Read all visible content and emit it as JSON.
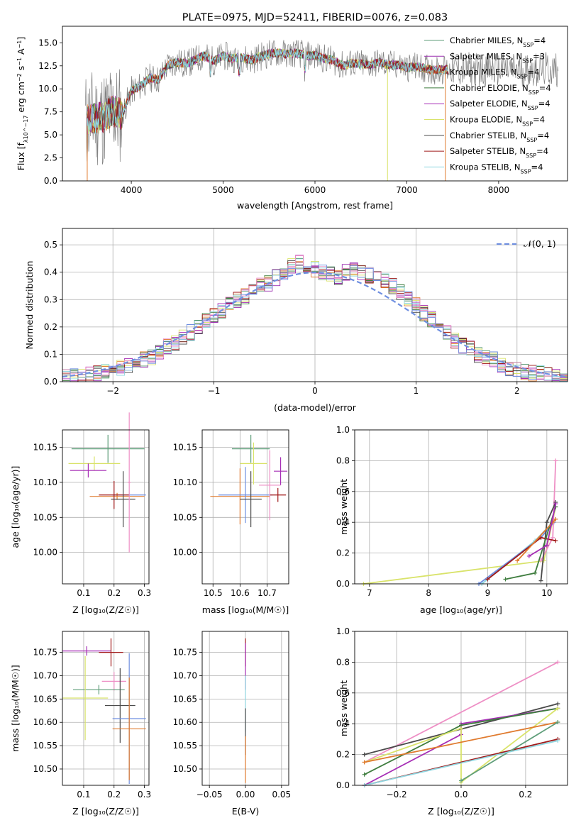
{
  "chart_data": [
    {
      "type": "line",
      "title": "PLATE=0975, MJD=52411, FIBERID=0076, z=0.083",
      "xlabel": "wavelength [Angstrom, rest frame]",
      "ylabel": "Flux [f_λ10^−17 erg cm^−2 s^−1 A^−1]",
      "xlim": [
        3250,
        8750
      ],
      "ylim": [
        0,
        16.8
      ],
      "xticks": [
        "4000",
        "5000",
        "6000",
        "7000",
        "8000"
      ],
      "yticks": [
        "0.0",
        "2.5",
        "5.0",
        "7.5",
        "10.0",
        "12.5",
        "15.0"
      ],
      "grid": false,
      "legend_position": "right",
      "legend": [
        {
          "name": "Chabrier MILES",
          "nssp": "4",
          "color": "#5f9e7a"
        },
        {
          "name": "Salpeter MILES",
          "nssp": "3",
          "color": "#9c2fb0"
        },
        {
          "name": "Kroupa MILES",
          "nssp": "4",
          "color": "#e07b2f"
        },
        {
          "name": "Chabrier ELODIE",
          "nssp": "4",
          "color": "#3f7d3f"
        },
        {
          "name": "Salpeter ELODIE",
          "nssp": "4",
          "color": "#a62db5"
        },
        {
          "name": "Kroupa ELODIE",
          "nssp": "4",
          "color": "#d9e36a"
        },
        {
          "name": "Chabrier STELIB",
          "nssp": "4",
          "color": "#4a4a4a"
        },
        {
          "name": "Salpeter STELIB",
          "nssp": "4",
          "color": "#a11a1a"
        },
        {
          "name": "Kroupa STELIB",
          "nssp": "4",
          "color": "#8fd6e0"
        }
      ],
      "spectrum_profile": {
        "x": [
          3500,
          3600,
          3700,
          3800,
          3900,
          4000,
          4100,
          4200,
          4300,
          4400,
          4500,
          4600,
          4700,
          4800,
          4900,
          5000,
          5100,
          5200,
          5300,
          5400,
          5500,
          5600,
          5700,
          5800,
          5900,
          6000,
          6100,
          6200,
          6300,
          6400,
          6500,
          6600,
          6700,
          6800,
          6900,
          7000,
          7100,
          7200,
          7300,
          7400
        ],
        "y": [
          6.5,
          6.8,
          7.0,
          7.6,
          7.2,
          9.8,
          10.3,
          11.2,
          11.0,
          12.6,
          12.9,
          12.7,
          13.2,
          13.6,
          13.0,
          13.6,
          13.3,
          13.4,
          13.1,
          13.5,
          13.8,
          13.9,
          13.8,
          13.9,
          13.6,
          13.6,
          13.3,
          13.1,
          12.5,
          12.8,
          12.7,
          12.6,
          12.9,
          12.6,
          12.6,
          12.3,
          12.4,
          12.2,
          12.0,
          12.1
        ]
      }
    },
    {
      "type": "histogram",
      "xlabel": "(data-model)/error",
      "ylabel": "Normed distribution",
      "xlim": [
        -2.5,
        2.5
      ],
      "ylim": [
        0,
        0.56
      ],
      "xticks": [
        "−2",
        "−1",
        "0",
        "1",
        "2"
      ],
      "yticks": [
        "0.0",
        "0.1",
        "0.2",
        "0.3",
        "0.4",
        "0.5"
      ],
      "grid": true,
      "legend_label": "𝒩(0, 1)",
      "legend_position": "top-right",
      "bin_width": 0.1,
      "bin_start": -2.5,
      "envelope": [
        0.02,
        0.02,
        0.022,
        0.025,
        0.03,
        0.035,
        0.04,
        0.05,
        0.06,
        0.07,
        0.08,
        0.09,
        0.11,
        0.13,
        0.14,
        0.16,
        0.18,
        0.2,
        0.22,
        0.24,
        0.26,
        0.28,
        0.3,
        0.31,
        0.33,
        0.35,
        0.36,
        0.38,
        0.4,
        0.42,
        0.44,
        0.42,
        0.41,
        0.4,
        0.39,
        0.38,
        0.4,
        0.41,
        0.4,
        0.39,
        0.38,
        0.37,
        0.35,
        0.33,
        0.3,
        0.28,
        0.25,
        0.23,
        0.2,
        0.18,
        0.15,
        0.13,
        0.12,
        0.1,
        0.09,
        0.08,
        0.06,
        0.05,
        0.04,
        0.035,
        0.03,
        0.03,
        0.025,
        0.02,
        0.02
      ]
    },
    {
      "type": "scatter",
      "xlabel": "Z [log10(Z/Z☉)]",
      "ylabel": "age  [log10(age/yr)]",
      "xlim": [
        0.03,
        0.315
      ],
      "ylim": [
        9.955,
        10.175
      ],
      "xticks": [
        "0.1",
        "0.2",
        "0.3"
      ],
      "yticks": [
        "10.00",
        "10.05",
        "10.10",
        "10.15"
      ],
      "grid": true,
      "points": [
        {
          "x": 0.18,
          "y": 10.148,
          "xerr": 0.12,
          "yerr": 0.02,
          "color": "#5f9e7a"
        },
        {
          "x": 0.135,
          "y": 10.127,
          "xerr": 0.085,
          "yerr": 0.01,
          "color": "#d9e36a"
        },
        {
          "x": 0.115,
          "y": 10.117,
          "xerr": 0.06,
          "yerr": 0.01,
          "color": "#a62db5"
        },
        {
          "x": 0.25,
          "y": 10.082,
          "xerr": 0.055,
          "yerr": 0.002,
          "color": "#6f8fe0"
        },
        {
          "x": 0.21,
          "y": 10.08,
          "xerr": 0.09,
          "yerr": 0.005,
          "color": "#e07b2f"
        },
        {
          "x": 0.2,
          "y": 10.082,
          "xerr": 0.05,
          "yerr": 0.02,
          "color": "#a11a1a"
        },
        {
          "x": 0.23,
          "y": 10.076,
          "xerr": 0.04,
          "yerr": 0.04,
          "color": "#4a4a4a"
        },
        {
          "x": 0.25,
          "y": 10.1,
          "xerr": 0.005,
          "yerr": 0.1,
          "color": "#ee8fc5"
        }
      ]
    },
    {
      "type": "scatter",
      "xlabel": "mass [log10(M/M☉)]",
      "ylabel": "",
      "xlim": [
        10.46,
        10.78
      ],
      "ylim": [
        9.955,
        10.175
      ],
      "xticks": [
        "10.5",
        "10.6",
        "10.7"
      ],
      "yticks": [
        "10.00",
        "10.05",
        "10.10",
        "10.15"
      ],
      "grid": true,
      "points": [
        {
          "x": 10.64,
          "y": 10.148,
          "xerr": 0.07,
          "yerr": 0.02,
          "color": "#5f9e7a"
        },
        {
          "x": 10.65,
          "y": 10.127,
          "xerr": 0.05,
          "yerr": 0.03,
          "color": "#d9e36a"
        },
        {
          "x": 10.75,
          "y": 10.116,
          "xerr": 0.025,
          "yerr": 0.02,
          "color": "#a62db5"
        },
        {
          "x": 10.6,
          "y": 10.08,
          "xerr": 0.11,
          "yerr": 0.04,
          "color": "#e07b2f"
        },
        {
          "x": 10.62,
          "y": 10.082,
          "xerr": 0.1,
          "yerr": 0.04,
          "color": "#6f8fe0"
        },
        {
          "x": 10.74,
          "y": 10.082,
          "xerr": 0.03,
          "yerr": 0.01,
          "color": "#a11a1a"
        },
        {
          "x": 10.64,
          "y": 10.076,
          "xerr": 0.04,
          "yerr": 0.04,
          "color": "#4a4a4a"
        },
        {
          "x": 10.71,
          "y": 10.096,
          "xerr": 0.04,
          "yerr": 0.05,
          "color": "#ee8fc5"
        }
      ]
    },
    {
      "type": "line",
      "xlabel": "age  [log10(age/yr)]",
      "ylabel": "mass weight",
      "xlim": [
        6.75,
        10.35
      ],
      "ylim": [
        0,
        1.0
      ],
      "xticks": [
        "7",
        "8",
        "9",
        "10"
      ],
      "yticks": [
        "0.0",
        "0.2",
        "0.4",
        "0.6",
        "0.8",
        "1.0"
      ],
      "grid": true,
      "series": [
        {
          "color": "#d9e36a",
          "x": [
            6.9,
            9.95,
            10.15
          ],
          "y": [
            0.0,
            0.15,
            0.5
          ]
        },
        {
          "color": "#8fd6e0",
          "x": [
            8.9,
            9.8,
            10.15
          ],
          "y": [
            0.0,
            0.28,
            0.42
          ]
        },
        {
          "color": "#6f8fe0",
          "x": [
            8.85,
            9.9,
            10.12
          ],
          "y": [
            0.0,
            0.3,
            0.4
          ]
        },
        {
          "color": "#ee8fc5",
          "x": [
            9.9,
            10.1,
            10.15
          ],
          "y": [
            0.15,
            0.3,
            0.8
          ]
        },
        {
          "color": "#4a4a4a",
          "x": [
            9.9,
            10.0,
            10.15
          ],
          "y": [
            0.02,
            0.4,
            0.53
          ]
        },
        {
          "color": "#a11a1a",
          "x": [
            9.0,
            9.9,
            10.15
          ],
          "y": [
            0.03,
            0.3,
            0.28
          ]
        },
        {
          "color": "#3f7d3f",
          "x": [
            9.3,
            9.8,
            10.15
          ],
          "y": [
            0.03,
            0.07,
            0.5
          ]
        },
        {
          "color": "#e07b2f",
          "x": [
            9.5,
            10.1,
            10.15
          ],
          "y": [
            0.15,
            0.4,
            0.42
          ]
        },
        {
          "color": "#a62db5",
          "x": [
            9.7,
            10.0,
            10.15
          ],
          "y": [
            0.18,
            0.25,
            0.52
          ]
        }
      ]
    },
    {
      "type": "scatter",
      "xlabel": "Z [log10(Z/Z☉)]",
      "ylabel": "mass [log10(M/M☉)]",
      "xlim": [
        0.03,
        0.315
      ],
      "ylim": [
        10.465,
        10.795
      ],
      "xticks": [
        "0.1",
        "0.2",
        "0.3"
      ],
      "yticks": [
        "10.50",
        "10.55",
        "10.60",
        "10.65",
        "10.70",
        "10.75"
      ],
      "grid": true,
      "points": [
        {
          "x": 0.11,
          "y": 10.753,
          "xerr": 0.08,
          "yerr": 0.01,
          "color": "#a62db5"
        },
        {
          "x": 0.19,
          "y": 10.75,
          "xerr": 0.04,
          "yerr": 0.03,
          "color": "#a11a1a"
        },
        {
          "x": 0.2,
          "y": 10.688,
          "xerr": 0.04,
          "yerr": 0.02,
          "color": "#ee8fc5"
        },
        {
          "x": 0.15,
          "y": 10.67,
          "xerr": 0.085,
          "yerr": 0.01,
          "color": "#5f9e7a"
        },
        {
          "x": 0.105,
          "y": 10.652,
          "xerr": 0.075,
          "yerr": 0.09,
          "color": "#d9e36a"
        },
        {
          "x": 0.22,
          "y": 10.636,
          "xerr": 0.05,
          "yerr": 0.08,
          "color": "#4a4a4a"
        },
        {
          "x": 0.25,
          "y": 10.608,
          "xerr": 0.055,
          "yerr": 0.14,
          "color": "#6f8fe0"
        },
        {
          "x": 0.25,
          "y": 10.586,
          "xerr": 0.055,
          "yerr": 0.11,
          "color": "#e07b2f"
        }
      ]
    },
    {
      "type": "scatter",
      "xlabel": "E(B-V)",
      "ylabel": "",
      "xlim": [
        -0.06,
        0.06
      ],
      "ylim": [
        10.465,
        10.795
      ],
      "xticks": [
        "−0.05",
        "0.00",
        "0.05"
      ],
      "yticks": [
        "10.50",
        "10.55",
        "10.60",
        "10.65",
        "10.70",
        "10.75"
      ],
      "grid": true,
      "points": [
        {
          "x": 0,
          "y": 10.75,
          "xerr": 0.0005,
          "yerr": 0.03,
          "color": "#a11a1a"
        },
        {
          "x": 0,
          "y": 10.72,
          "xerr": 0.0005,
          "yerr": 0.05,
          "color": "#a62db5"
        },
        {
          "x": 0,
          "y": 10.64,
          "xerr": 0.0005,
          "yerr": 0.06,
          "color": "#8fd6e0"
        },
        {
          "x": 0,
          "y": 10.58,
          "xerr": 0.0005,
          "yerr": 0.05,
          "color": "#4a4a4a"
        },
        {
          "x": 0,
          "y": 10.52,
          "xerr": 0.0005,
          "yerr": 0.05,
          "color": "#e07b2f"
        }
      ]
    },
    {
      "type": "line",
      "xlabel": "Z [log10(Z/Z☉)]",
      "ylabel": "mass weight",
      "xlim": [
        -0.33,
        0.33
      ],
      "ylim": [
        0,
        1.0
      ],
      "xticks": [
        "−0.2",
        "0.0",
        "0.2"
      ],
      "yticks": [
        "0.0",
        "0.2",
        "0.4",
        "0.6",
        "0.8",
        "1.0"
      ],
      "grid": true,
      "series": [
        {
          "color": "#ee8fc5",
          "x": [
            -0.3,
            0.3
          ],
          "y": [
            0.15,
            0.8
          ]
        },
        {
          "color": "#4a4a4a",
          "x": [
            -0.3,
            0.3
          ],
          "y": [
            0.2,
            0.53
          ]
        },
        {
          "color": "#a62db5",
          "x": [
            -0.3,
            0.0,
            0.0,
            0.3
          ],
          "y": [
            0.0,
            0.33,
            0.4,
            0.5
          ]
        },
        {
          "color": "#3f7d3f",
          "x": [
            -0.3,
            0.0,
            0.3
          ],
          "y": [
            0.07,
            0.39,
            0.5
          ]
        },
        {
          "color": "#d9e36a",
          "x": [
            -0.3,
            0.0,
            0.0,
            0.3
          ],
          "y": [
            0.15,
            0.37,
            0.02,
            0.5
          ]
        },
        {
          "color": "#e07b2f",
          "x": [
            -0.3,
            0.3
          ],
          "y": [
            0.15,
            0.41
          ]
        },
        {
          "color": "#a11a1a",
          "x": [
            -0.3,
            0.3
          ],
          "y": [
            0.0,
            0.3
          ]
        },
        {
          "color": "#5f9e7a",
          "x": [
            0.0,
            0.3
          ],
          "y": [
            0.03,
            0.41
          ]
        },
        {
          "color": "#8fd6e0",
          "x": [
            -0.3,
            0.3
          ],
          "y": [
            0.0,
            0.29
          ]
        }
      ]
    }
  ]
}
